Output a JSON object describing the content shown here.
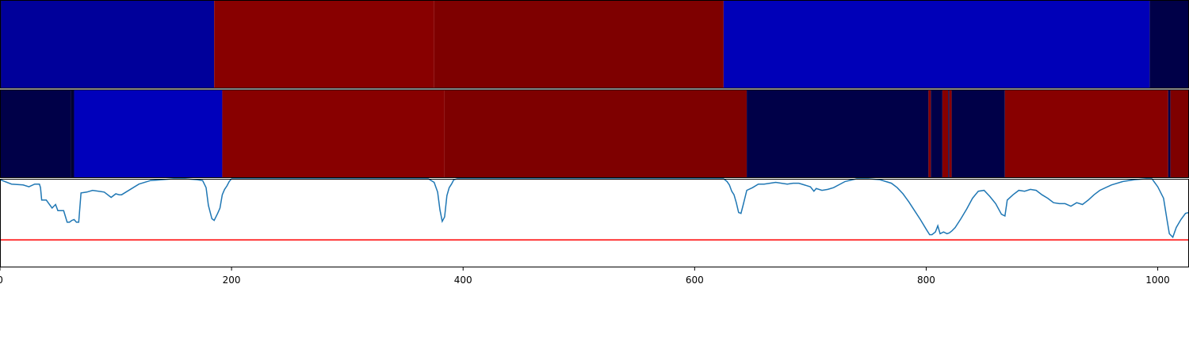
{
  "chart_data": [
    {
      "type": "heatmap",
      "segments": [
        {
          "start": 0,
          "end": 1,
          "color": "#000048"
        },
        {
          "start": 1,
          "end": 185,
          "color": "#00009a"
        },
        {
          "start": 185,
          "end": 375,
          "color": "#880000"
        },
        {
          "start": 375,
          "end": 625,
          "color": "#7e0000"
        },
        {
          "start": 625,
          "end": 993,
          "color": "#0000b8"
        },
        {
          "start": 993,
          "end": 1027,
          "color": "#000048"
        }
      ],
      "xlim": [
        0,
        1027
      ]
    },
    {
      "type": "heatmap",
      "segments": [
        {
          "start": 0,
          "end": 61,
          "color": "#000048"
        },
        {
          "start": 61,
          "end": 64,
          "color": "#000030"
        },
        {
          "start": 64,
          "end": 192,
          "color": "#0000bb"
        },
        {
          "start": 192,
          "end": 384,
          "color": "#880000"
        },
        {
          "start": 384,
          "end": 645,
          "color": "#7e0000"
        },
        {
          "start": 645,
          "end": 802,
          "color": "#000048"
        },
        {
          "start": 802,
          "end": 804,
          "color": "#880000"
        },
        {
          "start": 804,
          "end": 814,
          "color": "#000048"
        },
        {
          "start": 814,
          "end": 819,
          "color": "#880000"
        },
        {
          "start": 819,
          "end": 820,
          "color": "#000048"
        },
        {
          "start": 820,
          "end": 822,
          "color": "#880000"
        },
        {
          "start": 822,
          "end": 868,
          "color": "#000048"
        },
        {
          "start": 868,
          "end": 1009,
          "color": "#880000"
        },
        {
          "start": 1009,
          "end": 1011,
          "color": "#000048"
        },
        {
          "start": 1011,
          "end": 1027,
          "color": "#7e0000"
        }
      ],
      "xlim": [
        0,
        1027
      ]
    },
    {
      "type": "line",
      "series": [
        {
          "color": "#1f77b4",
          "x": [
            0,
            10,
            20,
            25,
            30,
            34,
            35,
            36,
            40,
            45,
            48,
            50,
            52,
            55,
            58,
            60,
            62,
            64,
            66,
            68,
            70,
            75,
            80,
            90,
            96,
            100,
            103,
            105,
            110,
            120,
            130,
            140,
            150,
            160,
            170,
            175,
            178,
            180,
            183,
            185,
            188,
            190,
            192,
            194,
            196,
            198,
            200,
            205,
            210,
            250,
            300,
            370,
            375,
            378,
            380,
            382,
            384,
            386,
            388,
            390,
            392,
            395,
            400,
            500,
            600,
            620,
            625,
            628,
            630,
            632,
            634,
            636,
            638,
            640,
            642,
            645,
            650,
            655,
            660,
            670,
            680,
            685,
            690,
            700,
            703,
            705,
            710,
            715,
            720,
            730,
            740,
            750,
            760,
            770,
            775,
            780,
            785,
            790,
            795,
            800,
            803,
            805,
            808,
            810,
            812,
            815,
            818,
            820,
            822,
            825,
            830,
            835,
            840,
            845,
            850,
            855,
            860,
            865,
            868,
            870,
            875,
            880,
            885,
            890,
            895,
            900,
            905,
            910,
            915,
            920,
            925,
            930,
            935,
            940,
            945,
            950,
            960,
            970,
            980,
            990,
            995,
            1000,
            1005,
            1008,
            1010,
            1013,
            1016,
            1020,
            1024,
            1027
          ],
          "y": [
            0.99,
            0.94,
            0.93,
            0.91,
            0.94,
            0.94,
            0.9,
            0.76,
            0.76,
            0.67,
            0.71,
            0.64,
            0.64,
            0.64,
            0.51,
            0.51,
            0.53,
            0.54,
            0.51,
            0.51,
            0.84,
            0.85,
            0.87,
            0.85,
            0.79,
            0.83,
            0.82,
            0.82,
            0.86,
            0.94,
            0.98,
            0.99,
            1.0,
            1.0,
            0.99,
            0.98,
            0.9,
            0.7,
            0.55,
            0.53,
            0.61,
            0.67,
            0.82,
            0.88,
            0.92,
            0.97,
            1.0,
            1.0,
            1.0,
            1.0,
            1.0,
            1.0,
            0.96,
            0.85,
            0.65,
            0.52,
            0.57,
            0.81,
            0.9,
            0.94,
            0.99,
            1.0,
            1.0,
            1.0,
            1.0,
            1.0,
            1.0,
            0.97,
            0.93,
            0.86,
            0.82,
            0.73,
            0.62,
            0.61,
            0.71,
            0.87,
            0.9,
            0.94,
            0.94,
            0.96,
            0.94,
            0.95,
            0.95,
            0.91,
            0.86,
            0.89,
            0.87,
            0.88,
            0.9,
            0.97,
            1.0,
            1.0,
            0.99,
            0.95,
            0.9,
            0.83,
            0.74,
            0.64,
            0.54,
            0.43,
            0.37,
            0.37,
            0.4,
            0.47,
            0.38,
            0.4,
            0.38,
            0.39,
            0.41,
            0.45,
            0.55,
            0.66,
            0.78,
            0.86,
            0.87,
            0.8,
            0.72,
            0.6,
            0.58,
            0.76,
            0.82,
            0.87,
            0.86,
            0.88,
            0.87,
            0.82,
            0.78,
            0.73,
            0.72,
            0.72,
            0.69,
            0.73,
            0.71,
            0.76,
            0.82,
            0.87,
            0.93,
            0.97,
            0.99,
            1.0,
            1.0,
            0.91,
            0.78,
            0.54,
            0.38,
            0.34,
            0.45,
            0.54,
            0.61,
            0.62
          ]
        },
        {
          "color": "#ff0000",
          "x": [
            0,
            1027
          ],
          "y": [
            0.31,
            0.31
          ]
        }
      ],
      "xlim": [
        0,
        1027
      ],
      "ylim": [
        0,
        1
      ],
      "xticks": [
        0,
        200,
        400,
        600,
        800,
        1000
      ],
      "xtick_labels": [
        "0",
        "200",
        "400",
        "600",
        "800",
        "1000"
      ]
    }
  ]
}
